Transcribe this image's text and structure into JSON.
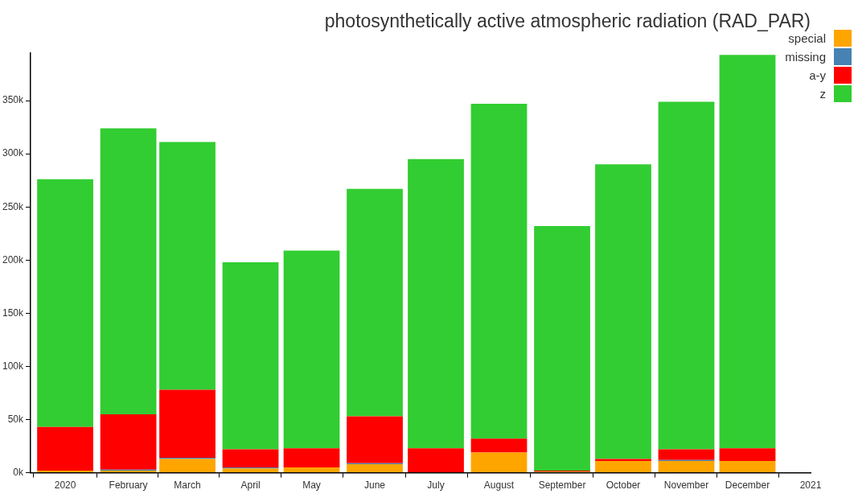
{
  "chart_data": {
    "type": "bar",
    "title": "photosynthetically active atmospheric radiation (RAD_PAR)",
    "stacked": true,
    "legend": "top right",
    "grid": false,
    "x": [
      "2020-01-01",
      "2020-02-01",
      "2020-03-01",
      "2020-04-01",
      "2020-05-01",
      "2020-06-01",
      "2020-07-01",
      "2020-08-01",
      "2020-09-01",
      "2020-10-01",
      "2020-11-01",
      "2020-12-01"
    ],
    "xlim": [
      "2019-12-15",
      "2021-01-01"
    ],
    "xticks": [
      {
        "value": "2020-01-01",
        "label": "2020"
      },
      {
        "value": "2020-02-01",
        "label": "February"
      },
      {
        "value": "2020-03-01",
        "label": "March"
      },
      {
        "value": "2020-04-01",
        "label": "April"
      },
      {
        "value": "2020-05-01",
        "label": "May"
      },
      {
        "value": "2020-06-01",
        "label": "June"
      },
      {
        "value": "2020-07-01",
        "label": "July"
      },
      {
        "value": "2020-08-01",
        "label": "August"
      },
      {
        "value": "2020-09-01",
        "label": "September"
      },
      {
        "value": "2020-10-01",
        "label": "October"
      },
      {
        "value": "2020-11-01",
        "label": "November"
      },
      {
        "value": "2020-12-01",
        "label": "December"
      },
      {
        "value": "2021-01-01",
        "label": "2021"
      }
    ],
    "ylim": [
      0,
      395000
    ],
    "yticks": [
      {
        "value": 0,
        "label": "0k"
      },
      {
        "value": 50000,
        "label": "50k"
      },
      {
        "value": 100000,
        "label": "100k"
      },
      {
        "value": 150000,
        "label": "150k"
      },
      {
        "value": 200000,
        "label": "200k"
      },
      {
        "value": 250000,
        "label": "250k"
      },
      {
        "value": 300000,
        "label": "300k"
      },
      {
        "value": 350000,
        "label": "350k"
      }
    ],
    "series": [
      {
        "name": "special",
        "color": "#ffa500",
        "values": [
          2000,
          2000,
          13000,
          4000,
          5000,
          8000,
          0,
          19000,
          1000,
          11000,
          11000,
          11000
        ]
      },
      {
        "name": "missing",
        "color": "#4682b4",
        "values": [
          0,
          1000,
          1000,
          1000,
          0,
          1000,
          0,
          0,
          0,
          0,
          1000,
          0
        ]
      },
      {
        "name": "a-y",
        "color": "#ff0000",
        "values": [
          41000,
          52000,
          64000,
          17000,
          18000,
          44000,
          23000,
          13000,
          1000,
          2000,
          10000,
          12000
        ]
      },
      {
        "name": "z",
        "color": "#32cd32",
        "values": [
          233000,
          269000,
          233000,
          176000,
          186000,
          214000,
          272000,
          315000,
          230000,
          277000,
          327000,
          370000
        ]
      }
    ]
  }
}
